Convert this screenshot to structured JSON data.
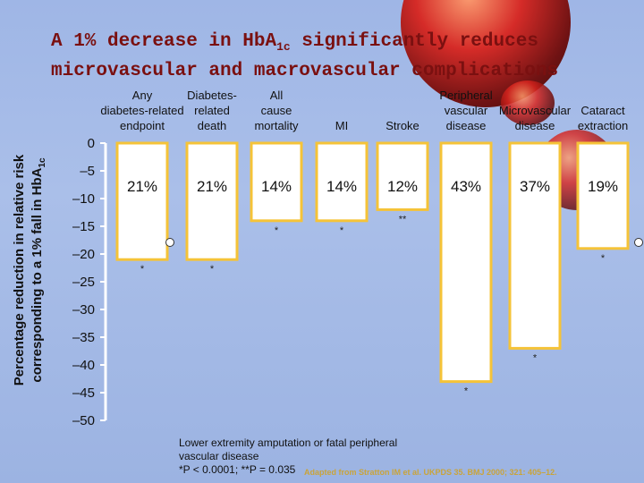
{
  "title": {
    "line1_prefix": "A 1% decrease in Hb",
    "line1_A": "A",
    "line1_sub": "1c",
    "line1_suffix": " significantly reduces",
    "line2": "microvascular and macrovascular complications"
  },
  "footnote": {
    "line1": "Lower extremity amputation or fatal peripheral",
    "line2": "vascular disease",
    "line3": "*P < 0.0001; **P = 0.035"
  },
  "source": "Adapted from Stratton IM et al. UKPDS 35. BMJ 2000; 321: 405–12.",
  "colors": {
    "bar_fill": "#ffffff",
    "bar_edge": "#f5c338",
    "axis": "#ffffff",
    "title": "#7a1010"
  },
  "chart_data": {
    "type": "bar",
    "ylabel_line1": "Percentage reduction in relative risk",
    "ylabel_line2_prefix": "corresponding to a 1% fall in HbA",
    "ylabel_line2_sub": "1c",
    "ylim": [
      -50,
      0
    ],
    "yticks": [
      0,
      -5,
      -10,
      -15,
      -20,
      -25,
      -30,
      -35,
      -40,
      -45,
      -50
    ],
    "ytick_labels": [
      "0",
      "–5",
      "–10",
      "–15",
      "–20",
      "–25",
      "–30",
      "–35",
      "–40",
      "–45",
      "–50"
    ],
    "categories": [
      [
        "Any",
        "diabetes-related",
        "endpoint"
      ],
      [
        "Diabetes-",
        "related",
        "death"
      ],
      [
        "All",
        "cause",
        "mortality"
      ],
      [
        "MI"
      ],
      [
        "Stroke"
      ],
      [
        "Peripheral",
        "vascular",
        "disease"
      ],
      [
        "Microvascular",
        "disease"
      ],
      [
        "Cataract",
        "extraction"
      ]
    ],
    "values": [
      -21,
      -21,
      -14,
      -14,
      -12,
      -43,
      -37,
      -19
    ],
    "value_labels": [
      "21%",
      "21%",
      "14%",
      "14%",
      "12%",
      "43%",
      "37%",
      "19%"
    ],
    "significance": [
      "*",
      "*",
      "*",
      "*",
      "**",
      "*",
      "*",
      "*"
    ],
    "grid": false
  }
}
